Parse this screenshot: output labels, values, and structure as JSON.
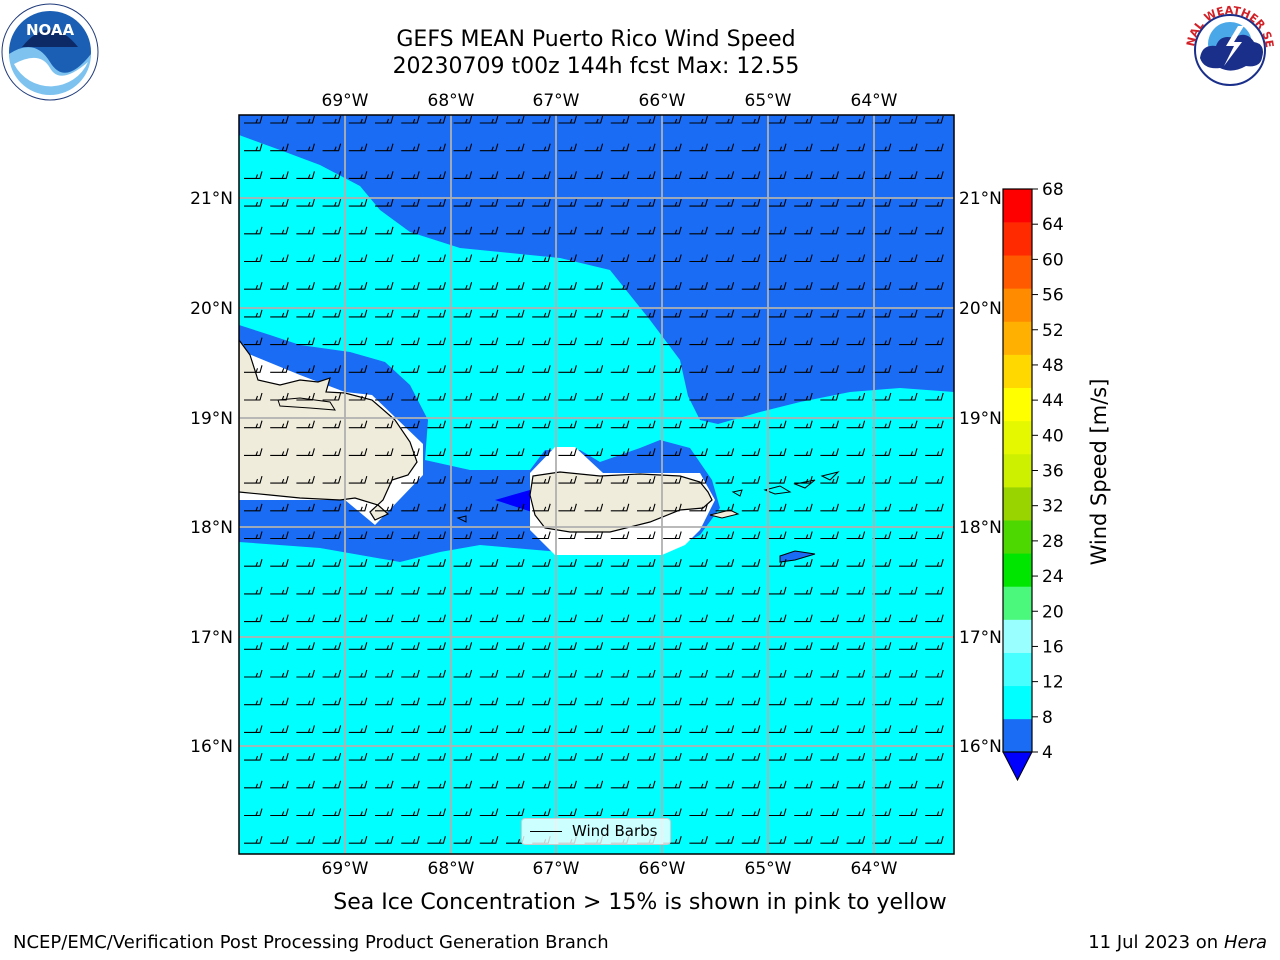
{
  "title_line1": "GEFS MEAN Puerto Rico Wind Speed",
  "title_line2": "20230709 t00z 144h fcst   Max: 12.55",
  "subtitle": "Sea Ice Concentration > 15% is shown in pink to yellow",
  "credit": "NCEP/EMC/Verification Post Processing Product Generation Branch",
  "date_text": "11 Jul 2023 on ",
  "host": "Hera",
  "logos": {
    "noara_text": "NOAA",
    "nws_text": "NATIONAL WEATHER SERVICE"
  },
  "map": {
    "lon_labels": [
      "69°W",
      "68°W",
      "67°W",
      "66°W",
      "65°W",
      "64°W"
    ],
    "lat_labels": [
      "21°N",
      "20°N",
      "19°N",
      "18°N",
      "17°N",
      "16°N"
    ],
    "lon_range": [
      -69.99,
      -63.24
    ],
    "lat_range": [
      15.03,
      21.75
    ],
    "gridlines": true,
    "legend": {
      "label": "Wind Barbs",
      "placement": "bottom-center"
    },
    "fill_colors": {
      "dark_blue": "#1a6cf5",
      "cyan": "#00ffff",
      "land": "#efecdc",
      "min_blue": "#0000ff"
    },
    "wind": {
      "direction": "from east",
      "representative_speed_kt": 15
    }
  },
  "colorbar": {
    "label": "Wind Speed [m/s]",
    "ticks": [
      "4",
      "8",
      "12",
      "16",
      "20",
      "24",
      "28",
      "32",
      "36",
      "40",
      "44",
      "48",
      "52",
      "56",
      "60",
      "64",
      "68"
    ],
    "colors": [
      "#1a6cf5",
      "#00ffff",
      "#48ffff",
      "#99ffff",
      "#4cf87c",
      "#00e600",
      "#4cd800",
      "#99d400",
      "#ccf000",
      "#e6f800",
      "#ffff00",
      "#ffd800",
      "#ffb000",
      "#ff8c00",
      "#ff5a00",
      "#ff2a00",
      "#ff0000"
    ],
    "extend_color": "#0000ff"
  }
}
